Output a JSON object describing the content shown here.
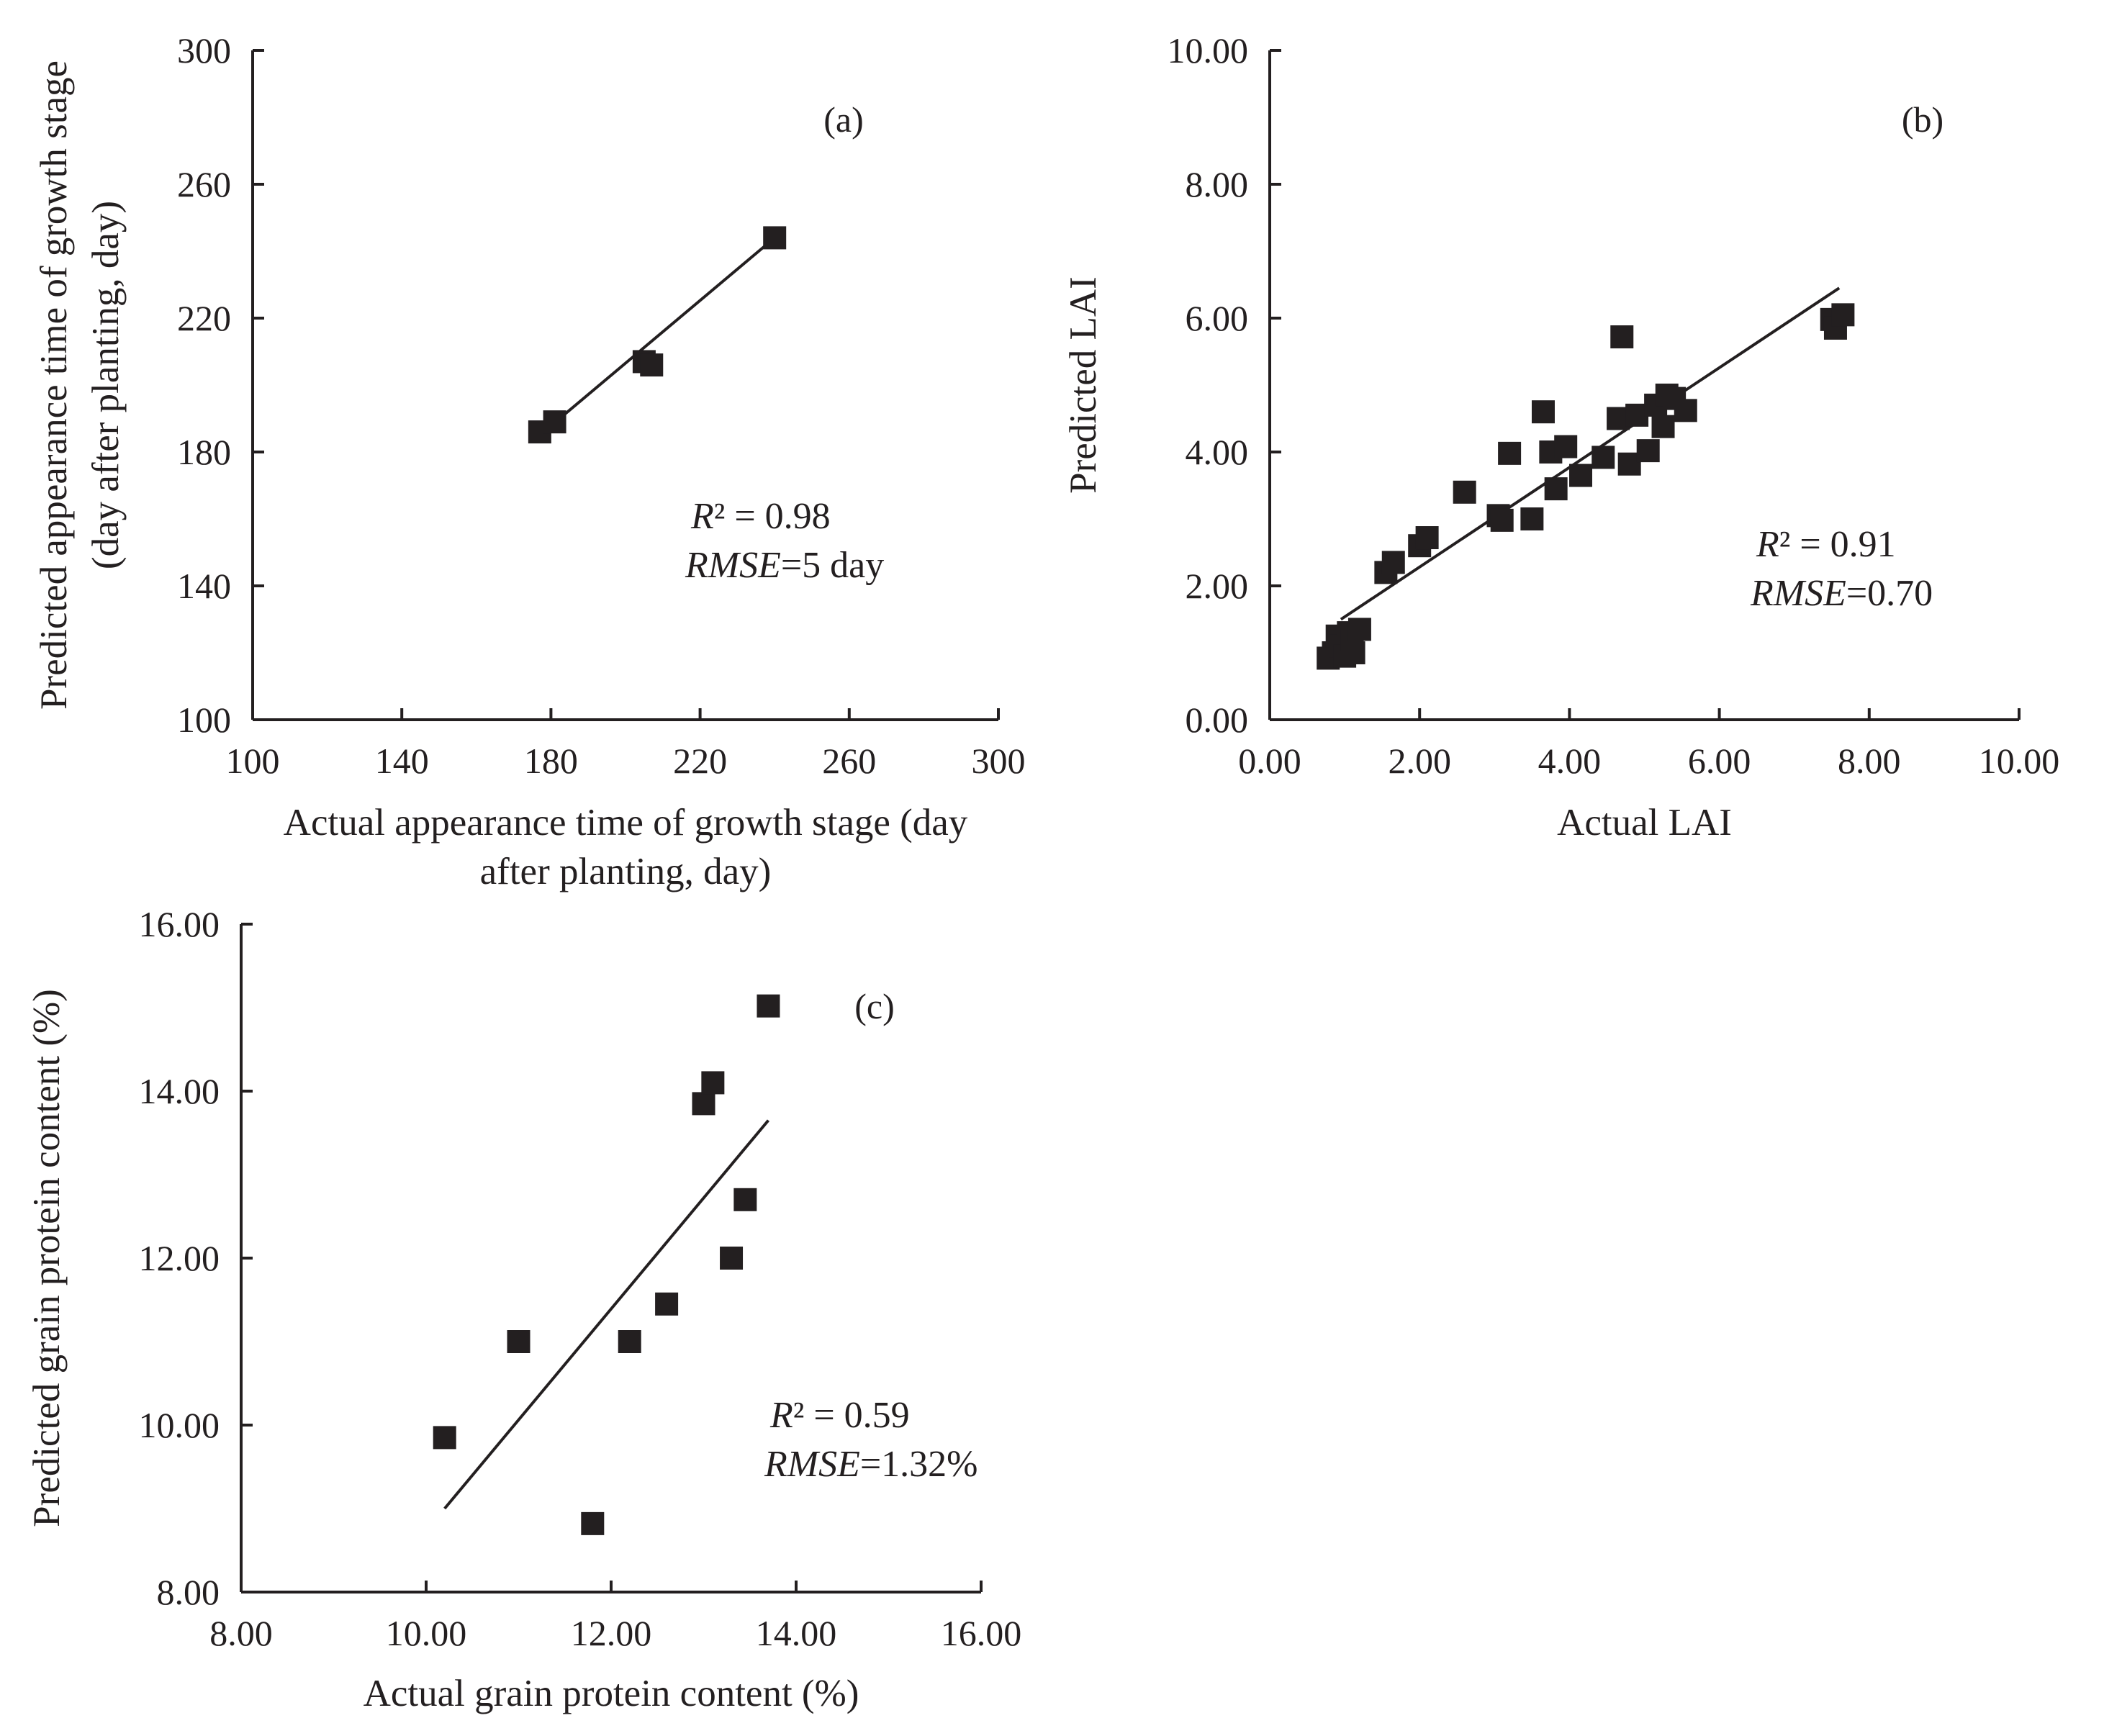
{
  "chart_data": [
    {
      "id": "a",
      "type": "scatter",
      "panel_label": "(a)",
      "xlabel_lines": [
        "Actual appearance time of growth stage (day",
        "after planting, day)"
      ],
      "ylabel_lines": [
        "Predicted appearance time of growth stage",
        "(day after planting, day)"
      ],
      "xlim": [
        100,
        300
      ],
      "ylim": [
        100,
        300
      ],
      "xticks": [
        100,
        140,
        180,
        220,
        260,
        300
      ],
      "yticks": [
        100,
        140,
        180,
        220,
        260,
        300
      ],
      "xtick_labels": [
        "100",
        "140",
        "180",
        "220",
        "260",
        "300"
      ],
      "ytick_labels": [
        "100",
        "140",
        "180",
        "220",
        "260",
        "300"
      ],
      "points": [
        {
          "x": 177,
          "y": 186
        },
        {
          "x": 181,
          "y": 189
        },
        {
          "x": 205,
          "y": 207
        },
        {
          "x": 207,
          "y": 206
        },
        {
          "x": 240,
          "y": 244
        }
      ],
      "trendline": {
        "x": [
          177,
          240
        ],
        "y": [
          185,
          244
        ]
      },
      "r2_prefix": "R",
      "r2_text": "² = 0.98",
      "rmse_prefix": "RMSE",
      "rmse_text": "=5 day"
    },
    {
      "id": "b",
      "type": "scatter",
      "panel_label": "(b)",
      "xlabel_lines": [
        "Actual LAI"
      ],
      "ylabel_lines": [
        "Predicted LAI"
      ],
      "xlim": [
        0,
        10
      ],
      "ylim": [
        0,
        10
      ],
      "xticks": [
        0,
        2,
        4,
        6,
        8,
        10
      ],
      "yticks": [
        0,
        2,
        4,
        6,
        8,
        10
      ],
      "xtick_labels": [
        "0.00",
        "2.00",
        "4.00",
        "6.00",
        "8.00",
        "10.00"
      ],
      "ytick_labels": [
        "0.00",
        "2.00",
        "4.00",
        "6.00",
        "8.00",
        "10.00"
      ],
      "points": [
        {
          "x": 0.78,
          "y": 0.92
        },
        {
          "x": 0.85,
          "y": 1.0
        },
        {
          "x": 0.9,
          "y": 1.25
        },
        {
          "x": 0.95,
          "y": 1.1
        },
        {
          "x": 1.0,
          "y": 0.95
        },
        {
          "x": 1.05,
          "y": 1.3
        },
        {
          "x": 1.1,
          "y": 1.2
        },
        {
          "x": 1.12,
          "y": 1.0
        },
        {
          "x": 1.2,
          "y": 1.35
        },
        {
          "x": 1.55,
          "y": 2.2
        },
        {
          "x": 1.65,
          "y": 2.35
        },
        {
          "x": 2.0,
          "y": 2.6
        },
        {
          "x": 2.1,
          "y": 2.72
        },
        {
          "x": 2.6,
          "y": 3.4
        },
        {
          "x": 3.05,
          "y": 3.05
        },
        {
          "x": 3.1,
          "y": 2.98
        },
        {
          "x": 3.2,
          "y": 3.98
        },
        {
          "x": 3.5,
          "y": 3.0
        },
        {
          "x": 3.65,
          "y": 4.6
        },
        {
          "x": 3.75,
          "y": 4.0
        },
        {
          "x": 3.82,
          "y": 3.45
        },
        {
          "x": 3.95,
          "y": 4.08
        },
        {
          "x": 4.15,
          "y": 3.65
        },
        {
          "x": 4.45,
          "y": 3.92
        },
        {
          "x": 4.65,
          "y": 4.5
        },
        {
          "x": 4.7,
          "y": 5.72
        },
        {
          "x": 4.8,
          "y": 3.82
        },
        {
          "x": 4.9,
          "y": 4.55
        },
        {
          "x": 5.05,
          "y": 4.02
        },
        {
          "x": 5.15,
          "y": 4.7
        },
        {
          "x": 5.25,
          "y": 4.38
        },
        {
          "x": 5.3,
          "y": 4.85
        },
        {
          "x": 5.4,
          "y": 4.8
        },
        {
          "x": 5.55,
          "y": 4.62
        },
        {
          "x": 7.5,
          "y": 5.98
        },
        {
          "x": 7.55,
          "y": 5.85
        },
        {
          "x": 7.65,
          "y": 6.05
        }
      ],
      "trendline": {
        "x": [
          0.95,
          7.6
        ],
        "y": [
          1.5,
          6.45
        ]
      },
      "r2_prefix": "R",
      "r2_text": "² = 0.91",
      "rmse_prefix": "RMSE",
      "rmse_text": "=0.70"
    },
    {
      "id": "c",
      "type": "scatter",
      "panel_label": "(c)",
      "xlabel_lines": [
        "Actual grain protein content (%)"
      ],
      "ylabel_lines": [
        "Predicted grain protein content (%)"
      ],
      "xlim": [
        8,
        16
      ],
      "ylim": [
        8,
        16
      ],
      "xticks": [
        8,
        10,
        12,
        14,
        16
      ],
      "yticks": [
        8,
        10,
        12,
        14,
        16
      ],
      "xtick_labels": [
        "8.00",
        "10.00",
        "12.00",
        "14.00",
        "16.00"
      ],
      "ytick_labels": [
        "8.00",
        "10.00",
        "12.00",
        "14.00",
        "16.00"
      ],
      "points": [
        {
          "x": 10.2,
          "y": 9.85
        },
        {
          "x": 11.0,
          "y": 11.0
        },
        {
          "x": 11.8,
          "y": 8.82
        },
        {
          "x": 12.2,
          "y": 11.0
        },
        {
          "x": 12.6,
          "y": 11.45
        },
        {
          "x": 13.0,
          "y": 13.85
        },
        {
          "x": 13.1,
          "y": 14.1
        },
        {
          "x": 13.3,
          "y": 12.0
        },
        {
          "x": 13.45,
          "y": 12.7
        },
        {
          "x": 13.7,
          "y": 15.02
        }
      ],
      "trendline": {
        "x": [
          10.2,
          13.7
        ],
        "y": [
          9.0,
          13.65
        ]
      },
      "r2_prefix": "R",
      "r2_text": "² = 0.59",
      "rmse_prefix": "RMSE",
      "rmse_text": "=1.32%"
    }
  ]
}
